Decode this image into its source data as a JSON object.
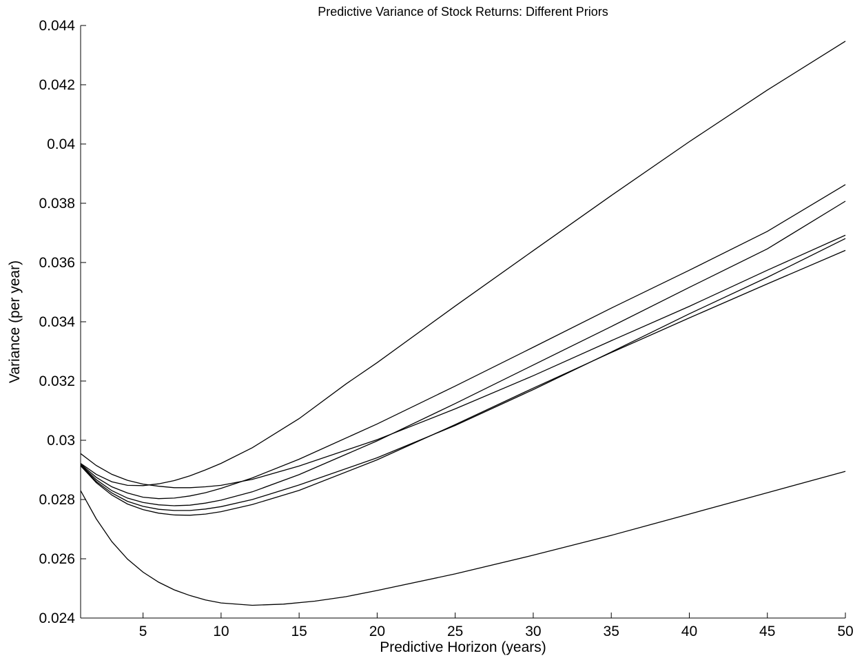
{
  "chart_data": {
    "type": "line",
    "title": "Predictive Variance of Stock Returns: Different Priors",
    "xlabel": "Predictive Horizon (years)",
    "ylabel": "Variance (per year)",
    "xlim": [
      1,
      50
    ],
    "ylim": [
      0.024,
      0.044
    ],
    "x_ticks": [
      5,
      10,
      15,
      20,
      25,
      30,
      35,
      40,
      45,
      50
    ],
    "y_ticks": [
      0.024,
      0.026,
      0.028,
      0.03,
      0.032,
      0.034,
      0.036,
      0.038,
      0.04,
      0.042,
      0.044
    ],
    "y_tick_labels": [
      "0.024",
      "0.026",
      "0.028",
      "0.03",
      "0.032",
      "0.034",
      "0.036",
      "0.038",
      "0.04",
      "0.042",
      "0.044"
    ],
    "grid": false,
    "legend": false,
    "line_color": "#000000",
    "series": [
      {
        "x": [
          1,
          2,
          3,
          4,
          5,
          6,
          7,
          8,
          9,
          10,
          12,
          15,
          18,
          20,
          25,
          30,
          35,
          40,
          45,
          50
        ],
        "values": [
          0.02922,
          0.02885,
          0.0286,
          0.02848,
          0.02847,
          0.02853,
          0.02864,
          0.0288,
          0.029,
          0.02922,
          0.02975,
          0.03073,
          0.0319,
          0.03262,
          0.03453,
          0.0364,
          0.03826,
          0.04008,
          0.04182,
          0.04347
        ]
      },
      {
        "x": [
          1,
          2,
          3,
          4,
          5,
          6,
          7,
          8,
          9,
          10,
          12,
          15,
          20,
          25,
          30,
          35,
          40,
          45,
          50
        ],
        "values": [
          0.02955,
          0.02915,
          0.02885,
          0.02865,
          0.02852,
          0.02845,
          0.0284,
          0.0284,
          0.02843,
          0.02848,
          0.02868,
          0.02913,
          0.03002,
          0.03106,
          0.03218,
          0.03336,
          0.03452,
          0.03574,
          0.03692
        ]
      },
      {
        "x": [
          1,
          2,
          3,
          4,
          5,
          6,
          7,
          8,
          9,
          10,
          12,
          15,
          20,
          25,
          30,
          35,
          40,
          45,
          50
        ],
        "values": [
          0.0292,
          0.02875,
          0.02843,
          0.02822,
          0.02808,
          0.02803,
          0.02805,
          0.02812,
          0.02823,
          0.02838,
          0.02873,
          0.02936,
          0.03055,
          0.03183,
          0.03314,
          0.03446,
          0.03574,
          0.03705,
          0.03863
        ]
      },
      {
        "x": [
          1,
          2,
          3,
          4,
          5,
          6,
          7,
          8,
          9,
          10,
          12,
          15,
          20,
          25,
          30,
          35,
          40,
          45,
          50
        ],
        "values": [
          0.02918,
          0.02867,
          0.0283,
          0.02805,
          0.0279,
          0.02782,
          0.02779,
          0.02781,
          0.02788,
          0.02798,
          0.02826,
          0.02884,
          0.02998,
          0.03124,
          0.03254,
          0.03384,
          0.03516,
          0.03646,
          0.03807
        ]
      },
      {
        "x": [
          1,
          2,
          3,
          4,
          5,
          6,
          7,
          8,
          9,
          10,
          12,
          15,
          20,
          25,
          30,
          35,
          40,
          45,
          50
        ],
        "values": [
          0.02916,
          0.02861,
          0.02822,
          0.02794,
          0.02777,
          0.02767,
          0.02763,
          0.02763,
          0.02768,
          0.02776,
          0.028,
          0.02849,
          0.02941,
          0.0305,
          0.03171,
          0.03298,
          0.03427,
          0.0355,
          0.03681
        ]
      },
      {
        "x": [
          1,
          2,
          3,
          4,
          5,
          6,
          7,
          8,
          9,
          10,
          12,
          15,
          20,
          25,
          30,
          35,
          40,
          45,
          50
        ],
        "values": [
          0.02914,
          0.02857,
          0.02815,
          0.02785,
          0.02766,
          0.02754,
          0.02748,
          0.02747,
          0.02751,
          0.02759,
          0.02783,
          0.02831,
          0.02934,
          0.03053,
          0.03176,
          0.03296,
          0.03413,
          0.03528,
          0.03641
        ]
      },
      {
        "x": [
          1,
          2,
          3,
          4,
          5,
          6,
          7,
          8,
          9,
          10,
          12,
          14,
          16,
          18,
          20,
          25,
          30,
          35,
          40,
          45,
          50
        ],
        "values": [
          0.0283,
          0.02735,
          0.02658,
          0.02599,
          0.02555,
          0.02521,
          0.02495,
          0.02476,
          0.02461,
          0.02451,
          0.02443,
          0.02447,
          0.02457,
          0.02472,
          0.02493,
          0.02549,
          0.02612,
          0.02679,
          0.02751,
          0.02823,
          0.02895
        ]
      }
    ]
  }
}
